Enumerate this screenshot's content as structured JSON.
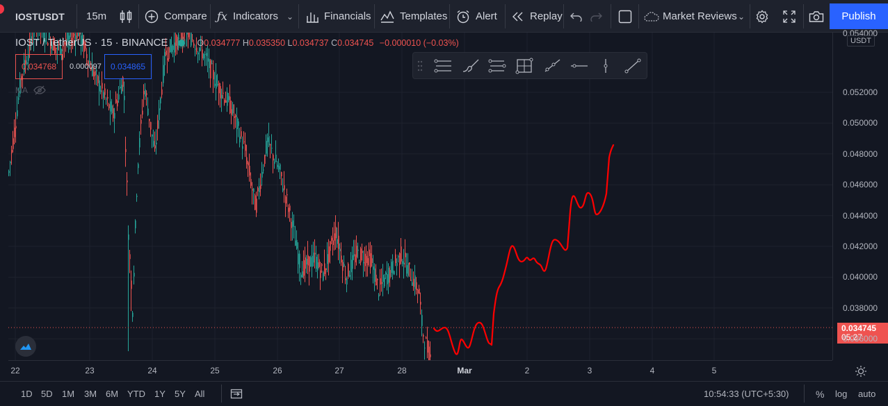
{
  "toolbar": {
    "symbol": "IOSTUSDT",
    "interval": "15m",
    "compare_label": "Compare",
    "indicators_label": "Indicators",
    "financials_label": "Financials",
    "templates_label": "Templates",
    "alert_label": "Alert",
    "replay_label": "Replay",
    "market_reviews_label": "Market Reviews",
    "publish_label": "Publish"
  },
  "legend": {
    "title": "IOST / TetherUS · 15 · BINANCE",
    "open_label": "O",
    "open": "0.034777",
    "high_label": "H",
    "high": "0.035350",
    "low_label": "L",
    "low": "0.034737",
    "close_label": "C",
    "close": "0.034745",
    "change": "−0.000010 (−0.03%)",
    "bid": "0.034768",
    "spread": "0.000097",
    "ask": "0.034865",
    "ma_label": "MA"
  },
  "price_axis": {
    "currency": "USDT",
    "ticks": [
      "0.052000",
      "0.050000",
      "0.048000",
      "0.046000",
      "0.044000",
      "0.042000",
      "0.040000",
      "0.038000",
      "0.036000"
    ],
    "top_partial": "0.054000",
    "last_price": "0.034745",
    "countdown": "05:27"
  },
  "time_axis": {
    "ticks": [
      {
        "label": "22",
        "bold": false
      },
      {
        "label": "23",
        "bold": false
      },
      {
        "label": "24",
        "bold": false
      },
      {
        "label": "25",
        "bold": false
      },
      {
        "label": "26",
        "bold": false
      },
      {
        "label": "27",
        "bold": false
      },
      {
        "label": "28",
        "bold": false
      },
      {
        "label": "Mar",
        "bold": true
      },
      {
        "label": "2",
        "bold": false
      },
      {
        "label": "3",
        "bold": false
      },
      {
        "label": "4",
        "bold": false
      },
      {
        "label": "5",
        "bold": false
      }
    ]
  },
  "bottom": {
    "ranges": [
      "1D",
      "5D",
      "1M",
      "3M",
      "6M",
      "YTD",
      "1Y",
      "5Y",
      "All"
    ],
    "clock": "10:54:33 (UTC+5:30)",
    "percent_label": "%",
    "log_label": "log",
    "auto_label": "auto"
  },
  "colors": {
    "up": "#26a69a",
    "down": "#ef5350",
    "drawing": "#ff0000",
    "accent": "#2962ff"
  }
}
